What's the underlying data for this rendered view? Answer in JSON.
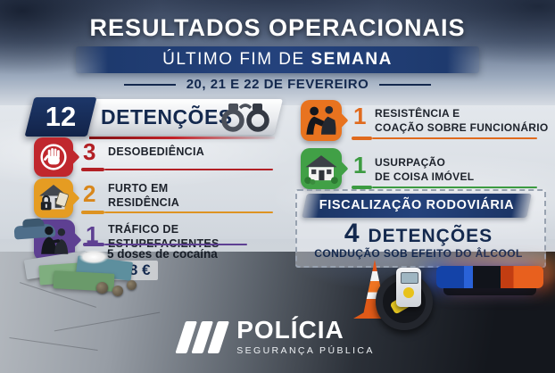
{
  "header": {
    "title": "RESULTADOS OPERACIONAIS",
    "subtitle_regular": "ÚLTIMO FIM DE ",
    "subtitle_bold": "SEMANA",
    "date": "20, 21 E 22 DE FEVEREIRO"
  },
  "detentions": {
    "count": "12",
    "label": "DETENÇÕES",
    "icon": "handcuffs-icon"
  },
  "left_items": [
    {
      "count": "3",
      "label_line1": "DESOBEDIÊNCIA",
      "icon": "stop-hand-icon",
      "accent_color": "#b22025"
    },
    {
      "count": "2",
      "label_line1": "FURTO EM",
      "label_line2": "RESIDÊNCIA",
      "icon": "burglary-house-icon",
      "accent_color": "#dd9322"
    },
    {
      "count": "1",
      "label_line1": "TRÁFICO DE",
      "label_line2": "ESTUPEFACIENTES",
      "note": "5 doses de cocaína",
      "amount": "368 €",
      "icon": "drug-trafficking-icon",
      "accent_color": "#5e4092"
    }
  ],
  "right_items": [
    {
      "count": "1",
      "label_line1": "RESISTÊNCIA E",
      "label_line2": "COAÇÃO SOBRE FUNCIONÁRIO",
      "icon": "struggle-icon",
      "accent_color": "#e06a1e"
    },
    {
      "count": "1",
      "label_line1": "USURPAÇÃO",
      "label_line2": "DE COISA IMÓVEL",
      "icon": "house-icon",
      "accent_color": "#3c9b41"
    }
  ],
  "road_enforcement": {
    "band_label": "FISCALIZAÇÃO RODOVIÁRIA",
    "count": "4",
    "label": "DETENÇÕES",
    "subtitle": "CONDUÇÃO SOB EFEITO DO ÂLCOOL"
  },
  "footer": {
    "brand": "POLÍCIA",
    "tagline": "SEGURANÇA PÚBLICA"
  },
  "colors": {
    "navy": "#14294e",
    "band_blue": "#24427c",
    "red": "#b22025",
    "amber": "#dd9322",
    "purple": "#5e4092",
    "orange": "#e06a1e",
    "green": "#3c9b41"
  }
}
